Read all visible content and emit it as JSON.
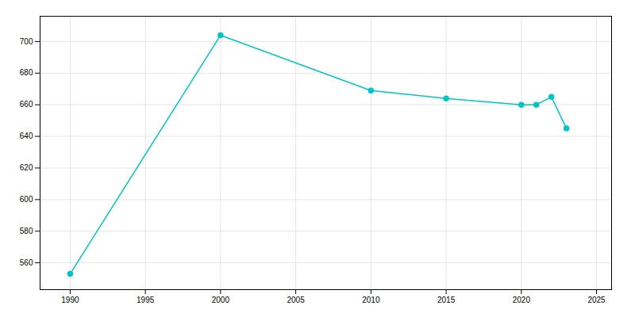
{
  "chart_data": {
    "type": "line",
    "x": [
      1990,
      2000,
      2010,
      2015,
      2020,
      2021,
      2022,
      2023
    ],
    "values": [
      553,
      704,
      669,
      664,
      660,
      660,
      665,
      645
    ],
    "color": "#00C5C5",
    "marker": "circle",
    "xlim": [
      1988,
      2026
    ],
    "ylim": [
      543,
      716
    ],
    "xticks": [
      1990,
      1995,
      2000,
      2005,
      2010,
      2015,
      2020,
      2025
    ],
    "yticks": [
      560,
      580,
      600,
      620,
      640,
      660,
      680,
      700
    ],
    "grid": true
  }
}
